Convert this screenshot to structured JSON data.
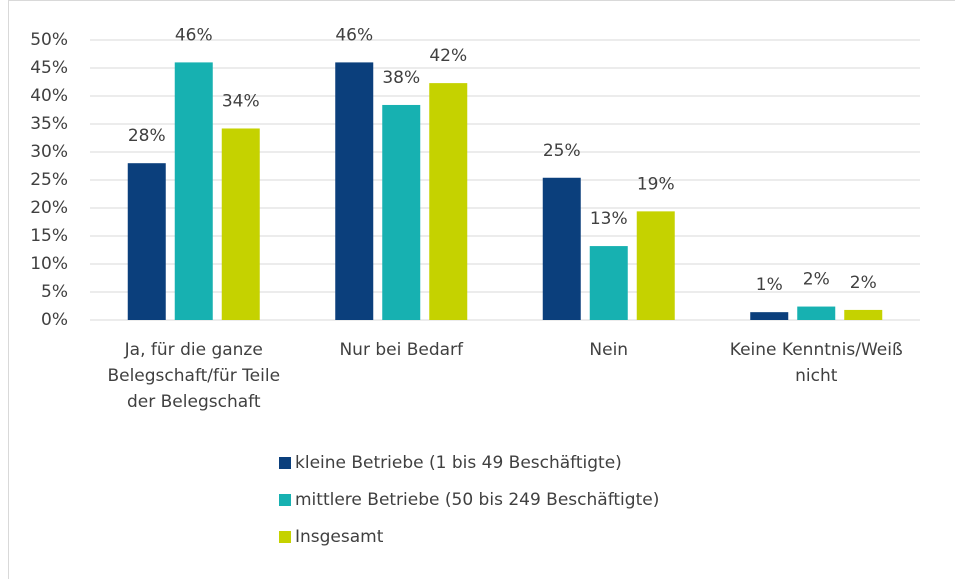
{
  "chart_data": {
    "type": "bar",
    "categories": [
      "Ja, für die ganze Belegschaft/für Teile der Belegschaft",
      "Nur bei Bedarf",
      "Nein",
      "Keine Kenntnis/Weiß nicht"
    ],
    "series": [
      {
        "name": "kleine Betriebe (1 bis 49 Beschäftigte)",
        "color": "#0b3f7c",
        "values": [
          28.0,
          46.0,
          25.4,
          1.4
        ],
        "value_labels": [
          "28%",
          "46%",
          "25%",
          "1%"
        ]
      },
      {
        "name": "mittlere Betriebe (50 bis 249 Beschäftigte)",
        "color": "#17b1b1",
        "values": [
          46.0,
          38.4,
          13.2,
          2.4
        ],
        "value_labels": [
          "46%",
          "38%",
          "13%",
          "2%"
        ]
      },
      {
        "name": "Insgesamt",
        "color": "#c5d200",
        "values": [
          34.2,
          42.3,
          19.4,
          1.8
        ],
        "value_labels": [
          "34%",
          "42%",
          "19%",
          "2%"
        ]
      }
    ],
    "ylim": [
      0,
      50
    ],
    "yticks": [
      {
        "value": 0,
        "label": "0%"
      },
      {
        "value": 5,
        "label": "5%"
      },
      {
        "value": 10,
        "label": "10%"
      },
      {
        "value": 15,
        "label": "15%"
      },
      {
        "value": 20,
        "label": "20%"
      },
      {
        "value": 25,
        "label": "25%"
      },
      {
        "value": 30,
        "label": "30%"
      },
      {
        "value": 35,
        "label": "35%"
      },
      {
        "value": 40,
        "label": "40%"
      },
      {
        "value": 45,
        "label": "45%"
      },
      {
        "value": 50,
        "label": "50%"
      }
    ],
    "grid": true,
    "legend": "bottom"
  }
}
